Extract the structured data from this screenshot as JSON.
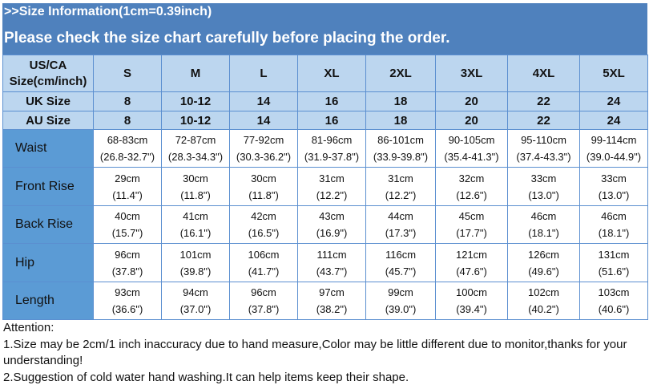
{
  "banner": {
    "title": ">>Size Information(1cm=0.39inch)",
    "subtitle": "Please check the size chart carefully before placing the order."
  },
  "table": {
    "header_label": [
      "US/CA",
      "Size(cm/inch)"
    ],
    "sizes": [
      "S",
      "M",
      "L",
      "XL",
      "2XL",
      "3XL",
      "4XL",
      "5XL"
    ],
    "uk": {
      "label": "UK Size",
      "values": [
        "8",
        "10-12",
        "14",
        "16",
        "18",
        "20",
        "22",
        "24"
      ]
    },
    "au": {
      "label": "AU Size",
      "values": [
        "8",
        "10-12",
        "14",
        "16",
        "18",
        "20",
        "22",
        "24"
      ]
    },
    "rows": [
      {
        "label": "Waist",
        "cm": [
          "68-83cm",
          "72-87cm",
          "77-92cm",
          "81-96cm",
          "86-101cm",
          "90-105cm",
          "95-110cm",
          "99-114cm"
        ],
        "in": [
          "(26.8-32.7\")",
          "(28.3-34.3\")",
          "(30.3-36.2\")",
          "(31.9-37.8\")",
          "(33.9-39.8\")",
          "(35.4-41.3\")",
          "(37.4-43.3\")",
          "(39.0-44.9\")"
        ]
      },
      {
        "label": "Front Rise",
        "cm": [
          "29cm",
          "30cm",
          "30cm",
          "31cm",
          "31cm",
          "32cm",
          "33cm",
          "33cm"
        ],
        "in": [
          "(11.4\")",
          "(11.8\")",
          "(11.8\")",
          "(12.2\")",
          "(12.2\")",
          "(12.6\")",
          "(13.0\")",
          "(13.0\")"
        ]
      },
      {
        "label": "Back Rise",
        "cm": [
          "40cm",
          "41cm",
          "42cm",
          "43cm",
          "44cm",
          "45cm",
          "46cm",
          "46cm"
        ],
        "in": [
          "(15.7\")",
          "(16.1\")",
          "(16.5\")",
          "(16.9\")",
          "(17.3\")",
          "(17.7\")",
          "(18.1\")",
          "(18.1\")"
        ]
      },
      {
        "label": "Hip",
        "cm": [
          "96cm",
          "101cm",
          "106cm",
          "111cm",
          "116cm",
          "121cm",
          "126cm",
          "131cm"
        ],
        "in": [
          "(37.8\")",
          "(39.8\")",
          "(41.7\")",
          "(43.7\")",
          "(45.7\")",
          "(47.6\")",
          "(49.6\")",
          "(51.6\")"
        ]
      },
      {
        "label": "Length",
        "cm": [
          "93cm",
          "94cm",
          "96cm",
          "97cm",
          "99cm",
          "100cm",
          "102cm",
          "103cm"
        ],
        "in": [
          "(36.6\")",
          "(37.0\")",
          "(37.8\")",
          "(38.2\")",
          "(39.0\")",
          "(39.4\")",
          "(40.2\")",
          "(40.6\")"
        ]
      }
    ]
  },
  "attention": {
    "title": "Attention:",
    "lines": [
      "1.Size may be 2cm/1 inch inaccuracy due to hand measure,Color may be little different due to monitor,thanks for your understanding!",
      "2.Suggestion of cold water hand washing.It can help items keep their shape."
    ]
  },
  "colors": {
    "banner": "#4f81bd",
    "header": "#bcd6ef",
    "label": "#5b9bd5"
  }
}
